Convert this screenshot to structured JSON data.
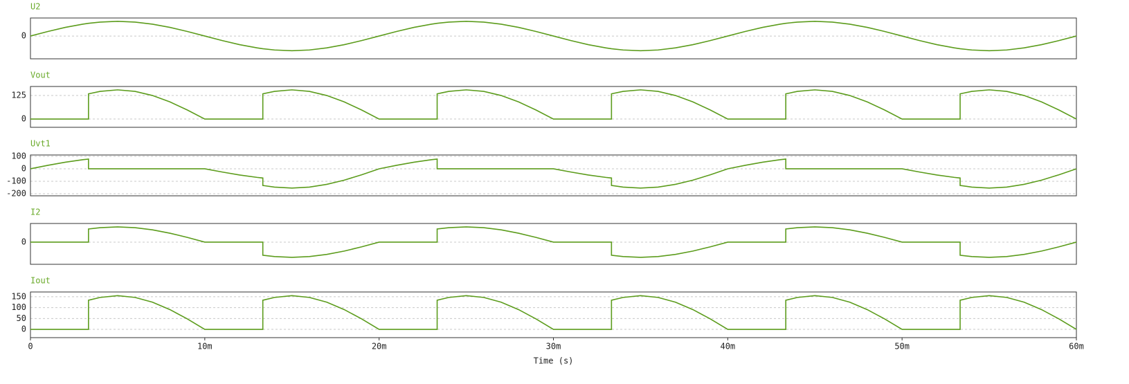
{
  "chart_data": [
    {
      "type": "line",
      "title": "U2",
      "color": "#5c9c1c",
      "grid": true,
      "x": [
        0,
        0.001,
        0.002,
        0.003,
        0.00333,
        0.00333,
        0.004,
        0.005,
        0.006,
        0.007,
        0.008,
        0.009,
        0.01,
        0.011,
        0.012,
        0.013,
        0.01333,
        0.01333,
        0.014,
        0.015,
        0.016,
        0.017,
        0.018,
        0.019,
        0.02,
        0.021,
        0.022,
        0.023,
        0.02333,
        0.02333,
        0.024,
        0.025,
        0.026,
        0.027,
        0.028,
        0.029,
        0.03,
        0.031,
        0.032,
        0.033,
        0.03333,
        0.03333,
        0.034,
        0.035,
        0.036,
        0.037,
        0.038,
        0.039,
        0.04,
        0.041,
        0.042,
        0.043,
        0.04333,
        0.04333,
        0.044,
        0.045,
        0.046,
        0.047,
        0.048,
        0.049,
        0.05,
        0.051,
        0.052,
        0.053,
        0.05333,
        0.05333,
        0.054,
        0.055,
        0.056,
        0.057,
        0.058,
        0.059,
        0.06
      ],
      "values": [
        0,
        48,
        91,
        125,
        134,
        134,
        147,
        155,
        147,
        125,
        91,
        48,
        0,
        -48,
        -91,
        -125,
        -134,
        -134,
        -147,
        -155,
        -147,
        -125,
        -91,
        -48,
        0,
        48,
        91,
        125,
        134,
        134,
        147,
        155,
        147,
        125,
        91,
        48,
        0,
        -48,
        -91,
        -125,
        -134,
        -134,
        -147,
        -155,
        -147,
        -125,
        -91,
        -48,
        0,
        48,
        91,
        125,
        134,
        134,
        147,
        155,
        147,
        125,
        91,
        48,
        0,
        -48,
        -91,
        -125,
        -134,
        -134,
        -147,
        -155,
        -147,
        -125,
        -91,
        -48,
        0
      ],
      "xlim": [
        0,
        0.06
      ],
      "ylim": [
        -240,
        190
      ],
      "yticks": [
        0
      ]
    },
    {
      "type": "line",
      "title": "Vout",
      "color": "#5c9c1c",
      "grid": true,
      "x": [
        0,
        0.001,
        0.002,
        0.003,
        0.00333,
        0.00333,
        0.004,
        0.005,
        0.006,
        0.007,
        0.008,
        0.009,
        0.01,
        0.011,
        0.012,
        0.013,
        0.01333,
        0.01333,
        0.014,
        0.015,
        0.016,
        0.017,
        0.018,
        0.019,
        0.02,
        0.021,
        0.022,
        0.023,
        0.02333,
        0.02333,
        0.024,
        0.025,
        0.026,
        0.027,
        0.028,
        0.029,
        0.03,
        0.031,
        0.032,
        0.033,
        0.03333,
        0.03333,
        0.034,
        0.035,
        0.036,
        0.037,
        0.038,
        0.039,
        0.04,
        0.041,
        0.042,
        0.043,
        0.04333,
        0.04333,
        0.044,
        0.045,
        0.046,
        0.047,
        0.048,
        0.049,
        0.05,
        0.051,
        0.052,
        0.053,
        0.05333,
        0.05333,
        0.054,
        0.055,
        0.056,
        0.057,
        0.058,
        0.059,
        0.06
      ],
      "values": [
        0,
        0,
        0,
        0,
        0,
        134,
        147,
        155,
        147,
        125,
        91,
        48,
        0,
        0,
        0,
        0,
        0,
        134,
        147,
        155,
        147,
        125,
        91,
        48,
        0,
        0,
        0,
        0,
        0,
        134,
        147,
        155,
        147,
        125,
        91,
        48,
        0,
        0,
        0,
        0,
        0,
        134,
        147,
        155,
        147,
        125,
        91,
        48,
        0,
        0,
        0,
        0,
        0,
        134,
        147,
        155,
        147,
        125,
        91,
        48,
        0,
        0,
        0,
        0,
        0,
        134,
        147,
        155,
        147,
        125,
        91,
        48,
        0
      ],
      "xlim": [
        0,
        0.06
      ],
      "ylim": [
        -44,
        173
      ],
      "yticks": [
        0,
        125
      ]
    },
    {
      "type": "line",
      "title": "Uvt1",
      "color": "#5c9c1c",
      "grid": true,
      "x": [
        0,
        0.001,
        0.002,
        0.003,
        0.00333,
        0.00333,
        0.004,
        0.005,
        0.006,
        0.007,
        0.008,
        0.009,
        0.01,
        0.011,
        0.012,
        0.013,
        0.01333,
        0.01333,
        0.014,
        0.015,
        0.016,
        0.017,
        0.018,
        0.019,
        0.02,
        0.021,
        0.022,
        0.023,
        0.02333,
        0.02333,
        0.024,
        0.025,
        0.026,
        0.027,
        0.028,
        0.029,
        0.03,
        0.031,
        0.032,
        0.033,
        0.03333,
        0.03333,
        0.034,
        0.035,
        0.036,
        0.037,
        0.038,
        0.039,
        0.04,
        0.041,
        0.042,
        0.043,
        0.04333,
        0.04333,
        0.044,
        0.045,
        0.046,
        0.047,
        0.048,
        0.049,
        0.05,
        0.051,
        0.052,
        0.053,
        0.05333,
        0.05333,
        0.054,
        0.055,
        0.056,
        0.057,
        0.058,
        0.059,
        0.06
      ],
      "values": [
        0,
        28,
        53,
        73,
        78,
        0,
        0,
        0,
        0,
        0,
        0,
        0,
        0,
        -26,
        -50,
        -69,
        -74,
        -134,
        -147,
        -155,
        -147,
        -125,
        -91,
        -48,
        0,
        28,
        53,
        73,
        78,
        0,
        0,
        0,
        0,
        0,
        0,
        0,
        0,
        -26,
        -50,
        -69,
        -74,
        -134,
        -147,
        -155,
        -147,
        -125,
        -91,
        -48,
        0,
        28,
        53,
        73,
        78,
        0,
        0,
        0,
        0,
        0,
        0,
        0,
        0,
        -26,
        -50,
        -69,
        -74,
        -134,
        -147,
        -155,
        -147,
        -125,
        -91,
        -48,
        0
      ],
      "xlim": [
        0,
        0.06
      ],
      "ylim": [
        -217,
        111
      ],
      "yticks": [
        -200,
        -100,
        0,
        100
      ]
    },
    {
      "type": "line",
      "title": "I2",
      "color": "#5c9c1c",
      "grid": true,
      "x": [
        0,
        0.001,
        0.002,
        0.003,
        0.00333,
        0.00333,
        0.004,
        0.005,
        0.006,
        0.007,
        0.008,
        0.009,
        0.01,
        0.011,
        0.012,
        0.013,
        0.01333,
        0.01333,
        0.014,
        0.015,
        0.016,
        0.017,
        0.018,
        0.019,
        0.02,
        0.021,
        0.022,
        0.023,
        0.02333,
        0.02333,
        0.024,
        0.025,
        0.026,
        0.027,
        0.028,
        0.029,
        0.03,
        0.031,
        0.032,
        0.033,
        0.03333,
        0.03333,
        0.034,
        0.035,
        0.036,
        0.037,
        0.038,
        0.039,
        0.04,
        0.041,
        0.042,
        0.043,
        0.04333,
        0.04333,
        0.044,
        0.045,
        0.046,
        0.047,
        0.048,
        0.049,
        0.05,
        0.051,
        0.052,
        0.053,
        0.05333,
        0.05333,
        0.054,
        0.055,
        0.056,
        0.057,
        0.058,
        0.059,
        0.06
      ],
      "values": [
        0,
        0,
        0,
        0,
        0,
        134,
        147,
        155,
        147,
        125,
        91,
        48,
        0,
        0,
        0,
        0,
        0,
        -134,
        -147,
        -155,
        -147,
        -125,
        -91,
        -48,
        0,
        0,
        0,
        0,
        0,
        134,
        147,
        155,
        147,
        125,
        91,
        48,
        0,
        0,
        0,
        0,
        0,
        -134,
        -147,
        -155,
        -147,
        -125,
        -91,
        -48,
        0,
        0,
        0,
        0,
        0,
        134,
        147,
        155,
        147,
        125,
        91,
        48,
        0,
        0,
        0,
        0,
        0,
        -134,
        -147,
        -155,
        -147,
        -125,
        -91,
        -48,
        0
      ],
      "xlim": [
        0,
        0.06
      ],
      "ylim": [
        -226,
        190
      ],
      "yticks": [
        0
      ]
    },
    {
      "type": "line",
      "title": "Iout",
      "color": "#5c9c1c",
      "grid": true,
      "x": [
        0,
        0.001,
        0.002,
        0.003,
        0.00333,
        0.00333,
        0.004,
        0.005,
        0.006,
        0.007,
        0.008,
        0.009,
        0.01,
        0.011,
        0.012,
        0.013,
        0.01333,
        0.01333,
        0.014,
        0.015,
        0.016,
        0.017,
        0.018,
        0.019,
        0.02,
        0.021,
        0.022,
        0.023,
        0.02333,
        0.02333,
        0.024,
        0.025,
        0.026,
        0.027,
        0.028,
        0.029,
        0.03,
        0.031,
        0.032,
        0.033,
        0.03333,
        0.03333,
        0.034,
        0.035,
        0.036,
        0.037,
        0.038,
        0.039,
        0.04,
        0.041,
        0.042,
        0.043,
        0.04333,
        0.04333,
        0.044,
        0.045,
        0.046,
        0.047,
        0.048,
        0.049,
        0.05,
        0.051,
        0.052,
        0.053,
        0.05333,
        0.05333,
        0.054,
        0.055,
        0.056,
        0.057,
        0.058,
        0.059,
        0.06
      ],
      "values": [
        0,
        0,
        0,
        0,
        0,
        134,
        147,
        155,
        147,
        125,
        91,
        48,
        0,
        0,
        0,
        0,
        0,
        134,
        147,
        155,
        147,
        125,
        91,
        48,
        0,
        0,
        0,
        0,
        0,
        134,
        147,
        155,
        147,
        125,
        91,
        48,
        0,
        0,
        0,
        0,
        0,
        134,
        147,
        155,
        147,
        125,
        91,
        48,
        0,
        0,
        0,
        0,
        0,
        134,
        147,
        155,
        147,
        125,
        91,
        48,
        0,
        0,
        0,
        0,
        0,
        134,
        147,
        155,
        147,
        125,
        91,
        48,
        0
      ],
      "xlim": [
        0,
        0.06
      ],
      "ylim": [
        -38,
        172
      ],
      "yticks": [
        0,
        50,
        100,
        150
      ],
      "xticks": [
        0,
        {
          "value": 0.01,
          "label": "10m"
        },
        {
          "value": 0.02,
          "label": "20m"
        },
        {
          "value": 0.03,
          "label": "30m"
        },
        {
          "value": 0.04,
          "label": "40m"
        },
        {
          "value": 0.05,
          "label": "50m"
        },
        {
          "value": 0.06,
          "label": "60m"
        }
      ],
      "xlabel": "Time (s)"
    }
  ]
}
